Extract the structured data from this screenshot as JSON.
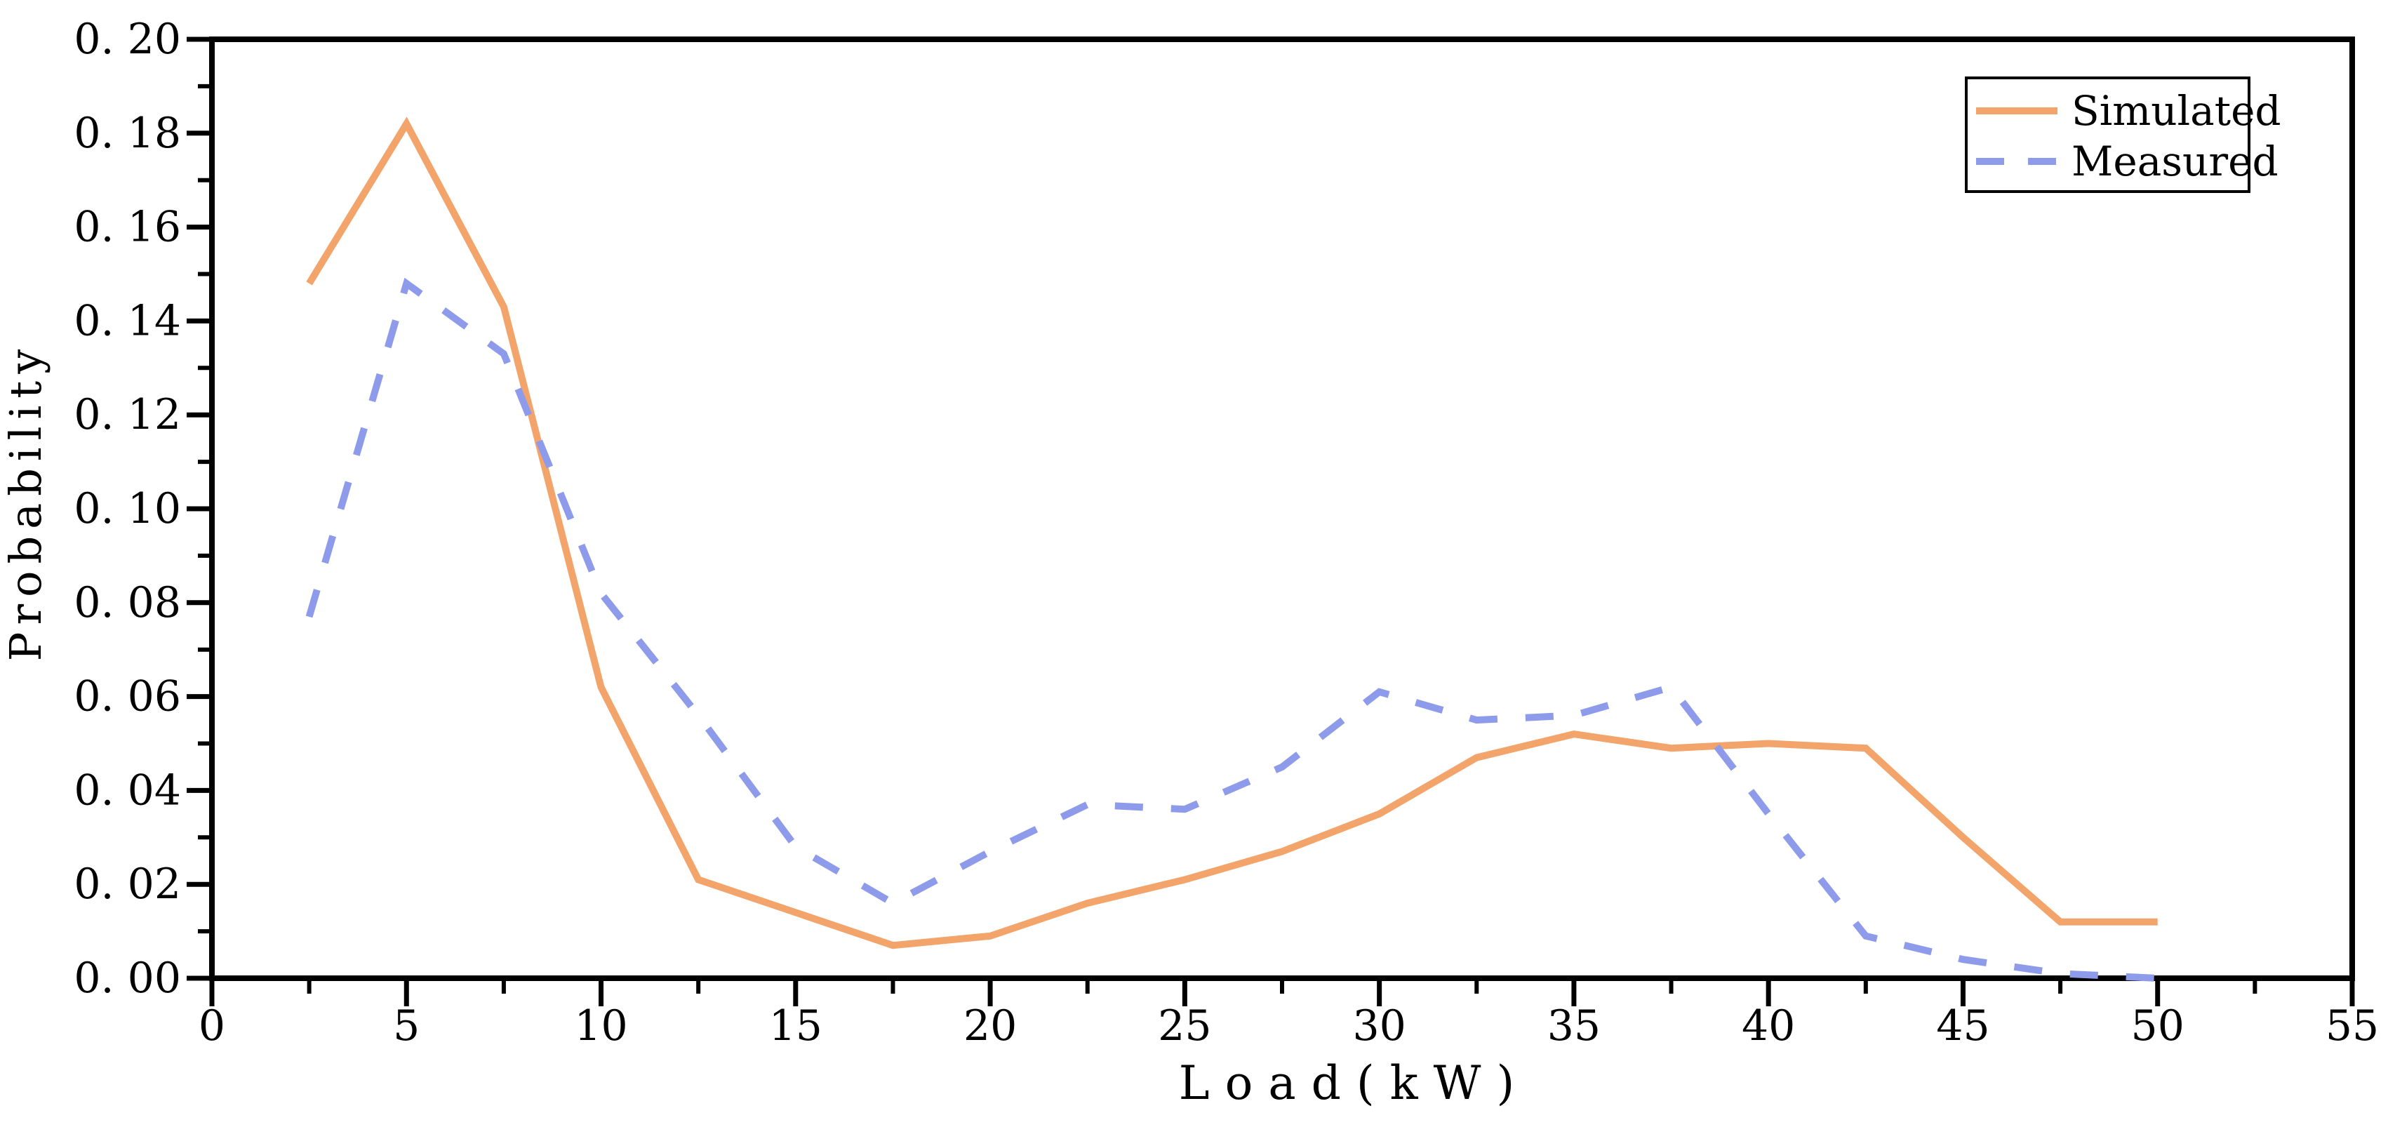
{
  "figure": {
    "background": "#FFFFFF",
    "axis_color": "#000000",
    "text_color": "#000000"
  },
  "chart_data": {
    "type": "line",
    "title": "",
    "xlabel": "Load(kW)",
    "ylabel": "Probability",
    "xlim": [
      0,
      55
    ],
    "ylim": [
      0,
      0.2
    ],
    "grid": false,
    "legend_position": "top-right",
    "x_major_ticks": {
      "values": [
        0,
        5,
        10,
        15,
        20,
        25,
        30,
        35,
        40,
        45,
        50,
        55
      ],
      "labels": [
        "0",
        "5",
        "10",
        "15",
        "20",
        "25",
        "30",
        "35",
        "40",
        "45",
        "50",
        "55"
      ]
    },
    "x_minor_step": 2.5,
    "y_major_ticks": {
      "values": [
        0.0,
        0.02,
        0.04,
        0.06,
        0.08,
        0.1,
        0.12,
        0.14,
        0.16,
        0.18,
        0.2
      ],
      "labels": [
        "0. 00",
        "0. 02",
        "0. 04",
        "0. 06",
        "0. 08",
        "0. 10",
        "0. 12",
        "0. 14",
        "0. 16",
        "0. 18",
        "0. 20"
      ]
    },
    "y_minor_step": 0.01,
    "x": [
      2.5,
      5,
      7.5,
      10,
      12.5,
      15,
      17.5,
      20,
      22.5,
      25,
      27.5,
      30,
      32.5,
      35,
      37.5,
      40,
      42.5,
      45,
      47.5,
      50
    ],
    "series": [
      {
        "name": "Simulated",
        "color": "#F2A46B",
        "line_style": "solid",
        "values": [
          0.148,
          0.182,
          0.143,
          0.062,
          0.021,
          0.014,
          0.007,
          0.009,
          0.016,
          0.021,
          0.027,
          0.035,
          0.047,
          0.052,
          0.049,
          0.05,
          0.049,
          0.03,
          0.012,
          0.012
        ]
      },
      {
        "name": "Measured",
        "color": "#8D9BEA",
        "line_style": "dashed",
        "values": [
          0.077,
          0.148,
          0.133,
          0.082,
          0.056,
          0.028,
          0.016,
          0.027,
          0.037,
          0.036,
          0.045,
          0.061,
          0.055,
          0.056,
          0.062,
          0.035,
          0.009,
          0.004,
          0.001,
          0.0
        ]
      }
    ]
  }
}
